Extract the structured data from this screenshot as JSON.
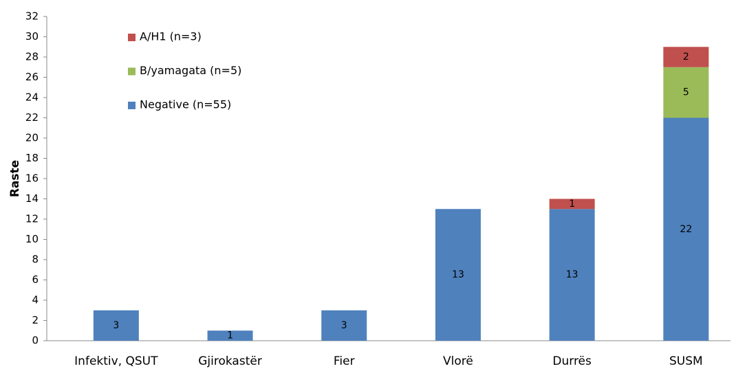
{
  "chart_data": {
    "type": "stacked-bar",
    "y_label": "Raste",
    "categories": [
      "Infektiv, QSUT",
      "Gjirokastër",
      "Fier",
      "Vlorë",
      "Durrës",
      "SUSM"
    ],
    "series": [
      {
        "name": "Negative (n=55)",
        "color": "#4f81bd",
        "values": [
          3,
          1,
          3,
          13,
          13,
          22
        ]
      },
      {
        "name": "B/yamagata (n=5)",
        "color": "#9bbb59",
        "values": [
          null,
          null,
          null,
          null,
          null,
          5
        ]
      },
      {
        "name": "A/H1 (n=3)",
        "color": "#c0504d",
        "values": [
          null,
          null,
          null,
          null,
          1,
          2
        ]
      }
    ],
    "ylim": [
      0,
      32
    ],
    "yticks": [
      0,
      2,
      4,
      6,
      8,
      10,
      12,
      14,
      16,
      18,
      20,
      22,
      24,
      26,
      28,
      30,
      32
    ],
    "legend": "upper left"
  }
}
